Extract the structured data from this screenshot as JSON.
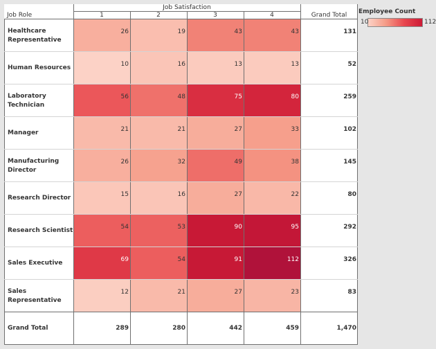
{
  "chart_data": {
    "type": "heatmap",
    "column_field": "Job Satisfaction",
    "row_field": "Job Role",
    "columns": [
      "1",
      "2",
      "3",
      "4"
    ],
    "grand_total_label": "Grand Total",
    "rows": [
      {
        "label": "Healthcare Representative",
        "values": [
          26,
          19,
          43,
          43
        ],
        "total": "131"
      },
      {
        "label": "Human Resources",
        "values": [
          10,
          16,
          13,
          13
        ],
        "total": "52"
      },
      {
        "label": "Laboratory Technician",
        "values": [
          56,
          48,
          75,
          80
        ],
        "total": "259"
      },
      {
        "label": "Manager",
        "values": [
          21,
          21,
          27,
          33
        ],
        "total": "102"
      },
      {
        "label": "Manufacturing Director",
        "values": [
          26,
          32,
          49,
          38
        ],
        "total": "145"
      },
      {
        "label": "Research Director",
        "values": [
          15,
          16,
          27,
          22
        ],
        "total": "80"
      },
      {
        "label": "Research Scientist",
        "values": [
          54,
          53,
          90,
          95
        ],
        "total": "292"
      },
      {
        "label": "Sales Executive",
        "values": [
          69,
          54,
          91,
          112
        ],
        "total": "326"
      },
      {
        "label": "Sales Representative",
        "values": [
          12,
          21,
          27,
          23
        ],
        "total": "83"
      }
    ],
    "column_totals": [
      "289",
      "280",
      "442",
      "459"
    ],
    "overall_total": "1,470",
    "legend": {
      "title": "Employee Count",
      "min": 10,
      "max": 112,
      "min_label": "10",
      "max_label": "112",
      "placement": "top-right"
    },
    "color_scale": [
      "#fcd2c6",
      "#f59a86",
      "#e8474f",
      "#cc1a35",
      "#b0123a"
    ]
  }
}
